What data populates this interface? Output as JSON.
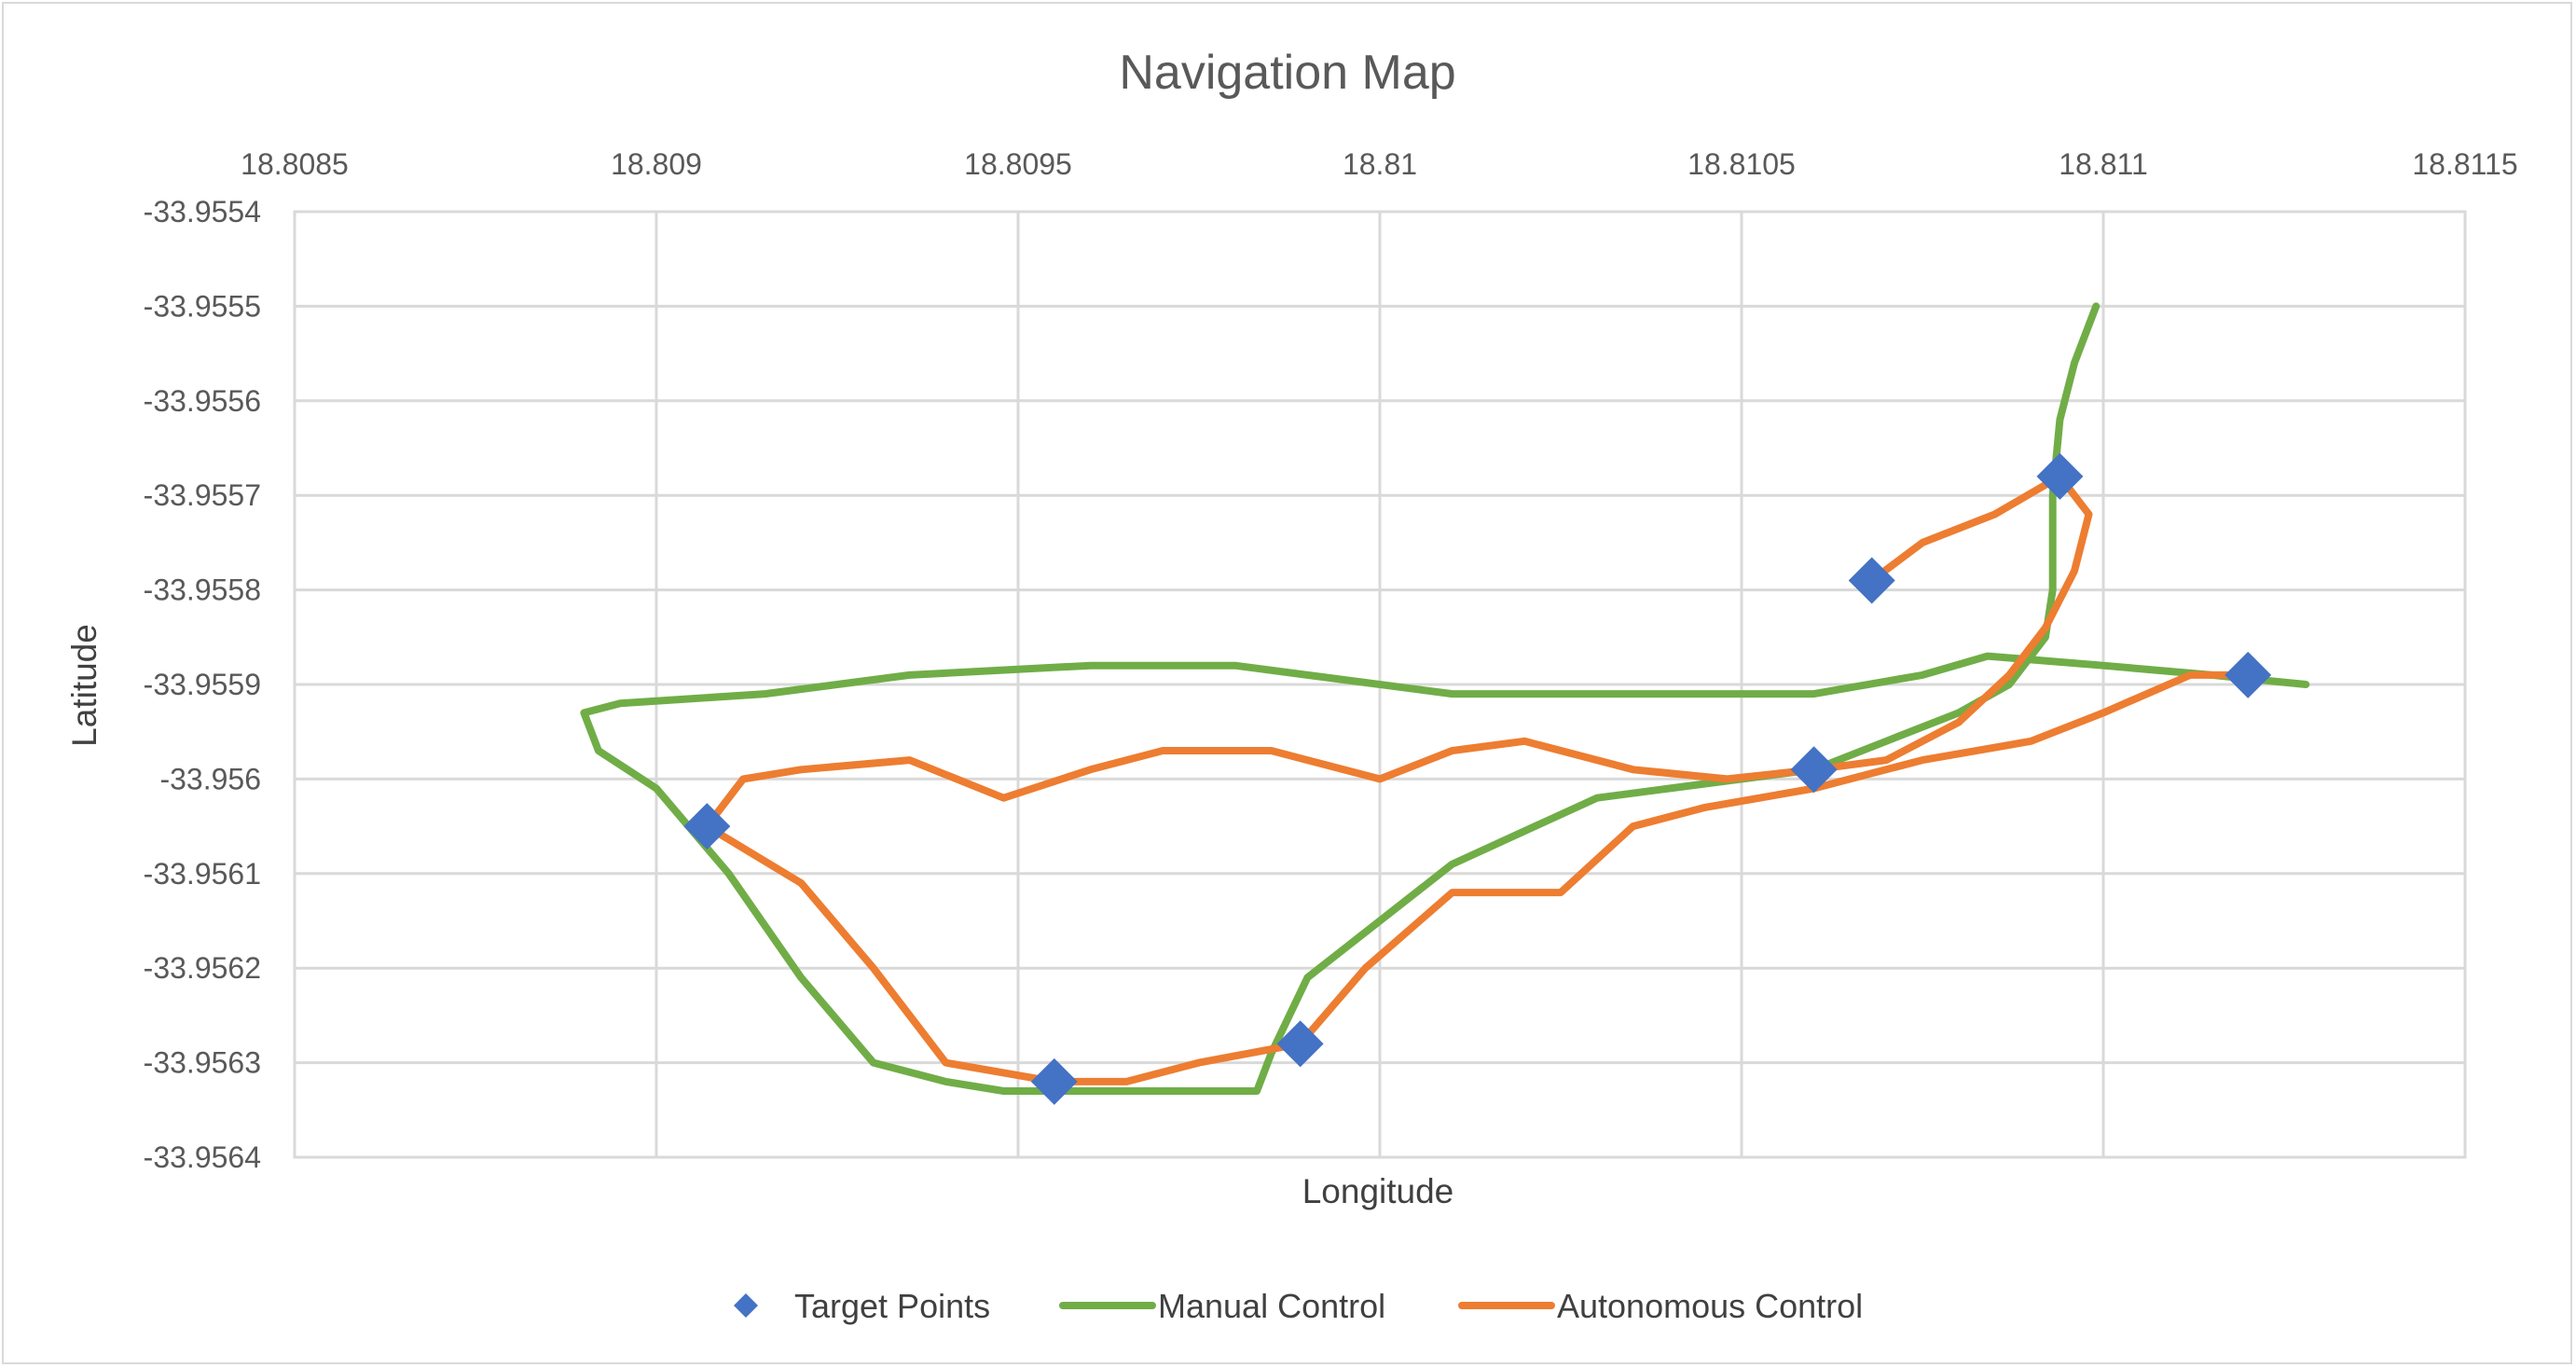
{
  "chart_data": {
    "type": "scatter",
    "title": "Navigation Map",
    "xlabel": "Longitude",
    "ylabel": "Latitude",
    "xlim": [
      18.8085,
      18.8115
    ],
    "ylim": [
      -33.9564,
      -33.9554
    ],
    "x_ticks": [
      18.8085,
      18.809,
      18.8095,
      18.81,
      18.8105,
      18.811,
      18.8115
    ],
    "x_tick_labels": [
      "18.8085",
      "18.809",
      "18.8095",
      "18.81",
      "18.8105",
      "18.811",
      "18.8115"
    ],
    "y_ticks": [
      -33.9554,
      -33.9555,
      -33.9556,
      -33.9557,
      -33.9558,
      -33.9559,
      -33.956,
      -33.9561,
      -33.9562,
      -33.9563,
      -33.9564
    ],
    "y_tick_labels": [
      "-33.9554",
      "-33.9555",
      "-33.9556",
      "-33.9557",
      "-33.9558",
      "-33.9559",
      "-33.956",
      "-33.9561",
      "-33.9562",
      "-33.9563",
      "-33.9564"
    ],
    "x_axis_position": "top",
    "grid": true,
    "legend_position": "bottom",
    "series": [
      {
        "name": "Target Points",
        "kind": "marker",
        "marker": "diamond",
        "color": "#4472c4",
        "points": [
          [
            18.80907,
            -33.95605
          ],
          [
            18.80955,
            -33.95632
          ],
          [
            18.80989,
            -33.95628
          ],
          [
            18.8106,
            -33.95599
          ],
          [
            18.81068,
            -33.95579
          ],
          [
            18.81094,
            -33.95568
          ],
          [
            18.8112,
            -33.95589
          ]
        ]
      },
      {
        "name": "Manual Control",
        "kind": "line",
        "color": "#70ad47",
        "points": [
          [
            18.81099,
            -33.9555
          ],
          [
            18.81096,
            -33.95556
          ],
          [
            18.81094,
            -33.95562
          ],
          [
            18.81093,
            -33.9557
          ],
          [
            18.81093,
            -33.9558
          ],
          [
            18.81092,
            -33.95585
          ],
          [
            18.81087,
            -33.9559
          ],
          [
            18.8108,
            -33.95593
          ],
          [
            18.8107,
            -33.95596
          ],
          [
            18.8106,
            -33.95599
          ],
          [
            18.8104,
            -33.95601
          ],
          [
            18.8103,
            -33.95602
          ],
          [
            18.8101,
            -33.95609
          ],
          [
            18.8099,
            -33.95621
          ],
          [
            18.80985,
            -33.95629
          ],
          [
            18.80983,
            -33.95633
          ],
          [
            18.80975,
            -33.95633
          ],
          [
            18.8096,
            -33.95633
          ],
          [
            18.80948,
            -33.95633
          ],
          [
            18.8094,
            -33.95632
          ],
          [
            18.8093,
            -33.9563
          ],
          [
            18.8092,
            -33.95621
          ],
          [
            18.8091,
            -33.9561
          ],
          [
            18.809,
            -33.95601
          ],
          [
            18.80892,
            -33.95597
          ],
          [
            18.8089,
            -33.95593
          ],
          [
            18.80895,
            -33.95592
          ],
          [
            18.80915,
            -33.95591
          ],
          [
            18.80935,
            -33.95589
          ],
          [
            18.8096,
            -33.95588
          ],
          [
            18.8098,
            -33.95588
          ],
          [
            18.8099,
            -33.95589
          ],
          [
            18.8101,
            -33.95591
          ],
          [
            18.8103,
            -33.95591
          ],
          [
            18.8106,
            -33.95591
          ],
          [
            18.81075,
            -33.95589
          ],
          [
            18.81084,
            -33.95587
          ],
          [
            18.811,
            -33.95588
          ],
          [
            18.81115,
            -33.95589
          ],
          [
            18.81128,
            -33.9559
          ]
        ]
      },
      {
        "name": "Autonomous Control",
        "kind": "line",
        "color": "#ed7d31",
        "points": [
          [
            18.81068,
            -33.95579
          ],
          [
            18.81075,
            -33.95575
          ],
          [
            18.81085,
            -33.95572
          ],
          [
            18.81094,
            -33.95568
          ],
          [
            18.81098,
            -33.95572
          ],
          [
            18.81096,
            -33.95578
          ],
          [
            18.81092,
            -33.95584
          ],
          [
            18.81087,
            -33.95589
          ],
          [
            18.8108,
            -33.95594
          ],
          [
            18.8107,
            -33.95598
          ],
          [
            18.8106,
            -33.95599
          ],
          [
            18.81048,
            -33.956
          ],
          [
            18.81035,
            -33.95599
          ],
          [
            18.8102,
            -33.95596
          ],
          [
            18.8101,
            -33.95597
          ],
          [
            18.81,
            -33.956
          ],
          [
            18.80985,
            -33.95597
          ],
          [
            18.8097,
            -33.95597
          ],
          [
            18.8096,
            -33.95599
          ],
          [
            18.80948,
            -33.95602
          ],
          [
            18.80935,
            -33.95598
          ],
          [
            18.8092,
            -33.95599
          ],
          [
            18.80912,
            -33.956
          ],
          [
            18.80907,
            -33.95605
          ],
          [
            18.8092,
            -33.95611
          ],
          [
            18.8093,
            -33.9562
          ],
          [
            18.8094,
            -33.9563
          ],
          [
            18.80955,
            -33.95632
          ],
          [
            18.80965,
            -33.95632
          ],
          [
            18.80975,
            -33.9563
          ],
          [
            18.80989,
            -33.95628
          ],
          [
            18.80998,
            -33.9562
          ],
          [
            18.8101,
            -33.95612
          ],
          [
            18.81025,
            -33.95612
          ],
          [
            18.81035,
            -33.95605
          ],
          [
            18.81045,
            -33.95603
          ],
          [
            18.8106,
            -33.95601
          ],
          [
            18.81075,
            -33.95598
          ],
          [
            18.8109,
            -33.95596
          ],
          [
            18.811,
            -33.95593
          ],
          [
            18.81112,
            -33.95589
          ],
          [
            18.8112,
            -33.95589
          ]
        ]
      }
    ]
  }
}
